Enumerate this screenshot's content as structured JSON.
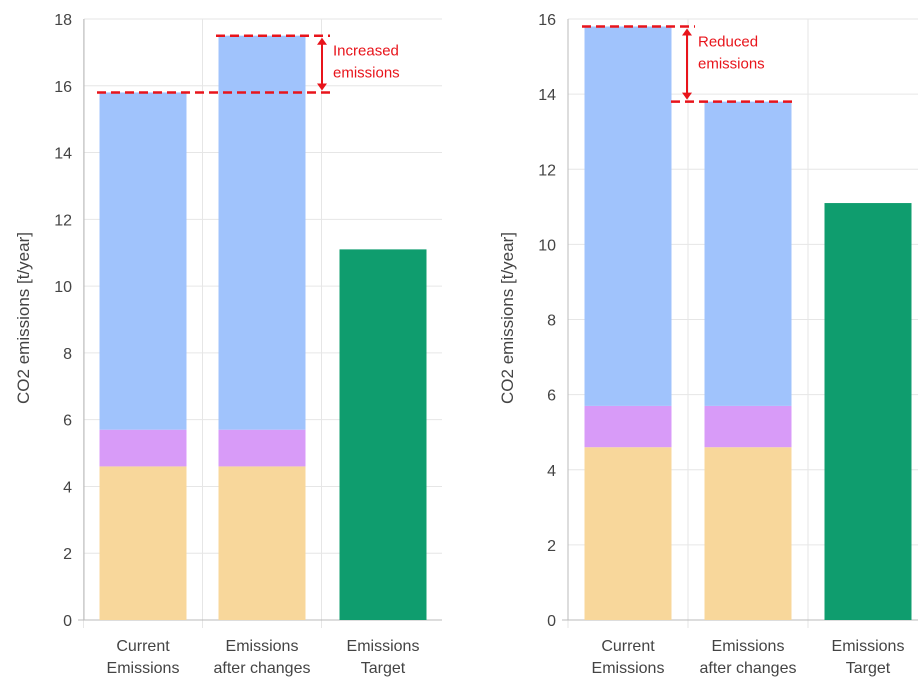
{
  "colors": {
    "base": "#f8d79b",
    "middle": "#d89bf8",
    "top": "#a0c3fc",
    "target": "#0f9d6e",
    "annotation": "#e8141b",
    "grid": "#e6e6e6",
    "axis": "#bbbbbb"
  },
  "chart_data": [
    {
      "type": "bar",
      "stacked": true,
      "categories": [
        [
          "Current",
          "Emissions"
        ],
        [
          "Emissions",
          "after changes"
        ],
        [
          "Emissions",
          "Target"
        ]
      ],
      "ylabel": "CO2 emissions [t/year]",
      "ylim": [
        0,
        18
      ],
      "yticks": [
        0,
        2,
        4,
        6,
        8,
        10,
        12,
        14,
        16,
        18
      ],
      "grid": true,
      "series": [
        {
          "color_key": "base",
          "values": [
            4.6,
            4.6,
            null
          ]
        },
        {
          "color_key": "middle",
          "values": [
            1.1,
            1.1,
            null
          ]
        },
        {
          "color_key": "top",
          "values": [
            10.1,
            11.8,
            null
          ]
        },
        {
          "color_key": "target",
          "values": [
            null,
            null,
            11.1
          ]
        }
      ],
      "annotation": {
        "text": [
          "Increased",
          "emissions"
        ],
        "from": 15.8,
        "to": 17.5
      }
    },
    {
      "type": "bar",
      "stacked": true,
      "categories": [
        [
          "Current",
          "Emissions"
        ],
        [
          "Emissions",
          "after changes"
        ],
        [
          "Emissions",
          "Target"
        ]
      ],
      "ylabel": "CO2 emissions [t/year]",
      "ylim": [
        0,
        16
      ],
      "yticks": [
        0,
        2,
        4,
        6,
        8,
        10,
        12,
        14,
        16
      ],
      "grid": true,
      "series": [
        {
          "color_key": "base",
          "values": [
            4.6,
            4.6,
            null
          ]
        },
        {
          "color_key": "middle",
          "values": [
            1.1,
            1.1,
            null
          ]
        },
        {
          "color_key": "top",
          "values": [
            10.1,
            8.1,
            null
          ]
        },
        {
          "color_key": "target",
          "values": [
            null,
            null,
            11.1
          ]
        }
      ],
      "annotation": {
        "text": [
          "Reduced",
          "emissions"
        ],
        "from": 15.8,
        "to": 13.8
      }
    }
  ]
}
